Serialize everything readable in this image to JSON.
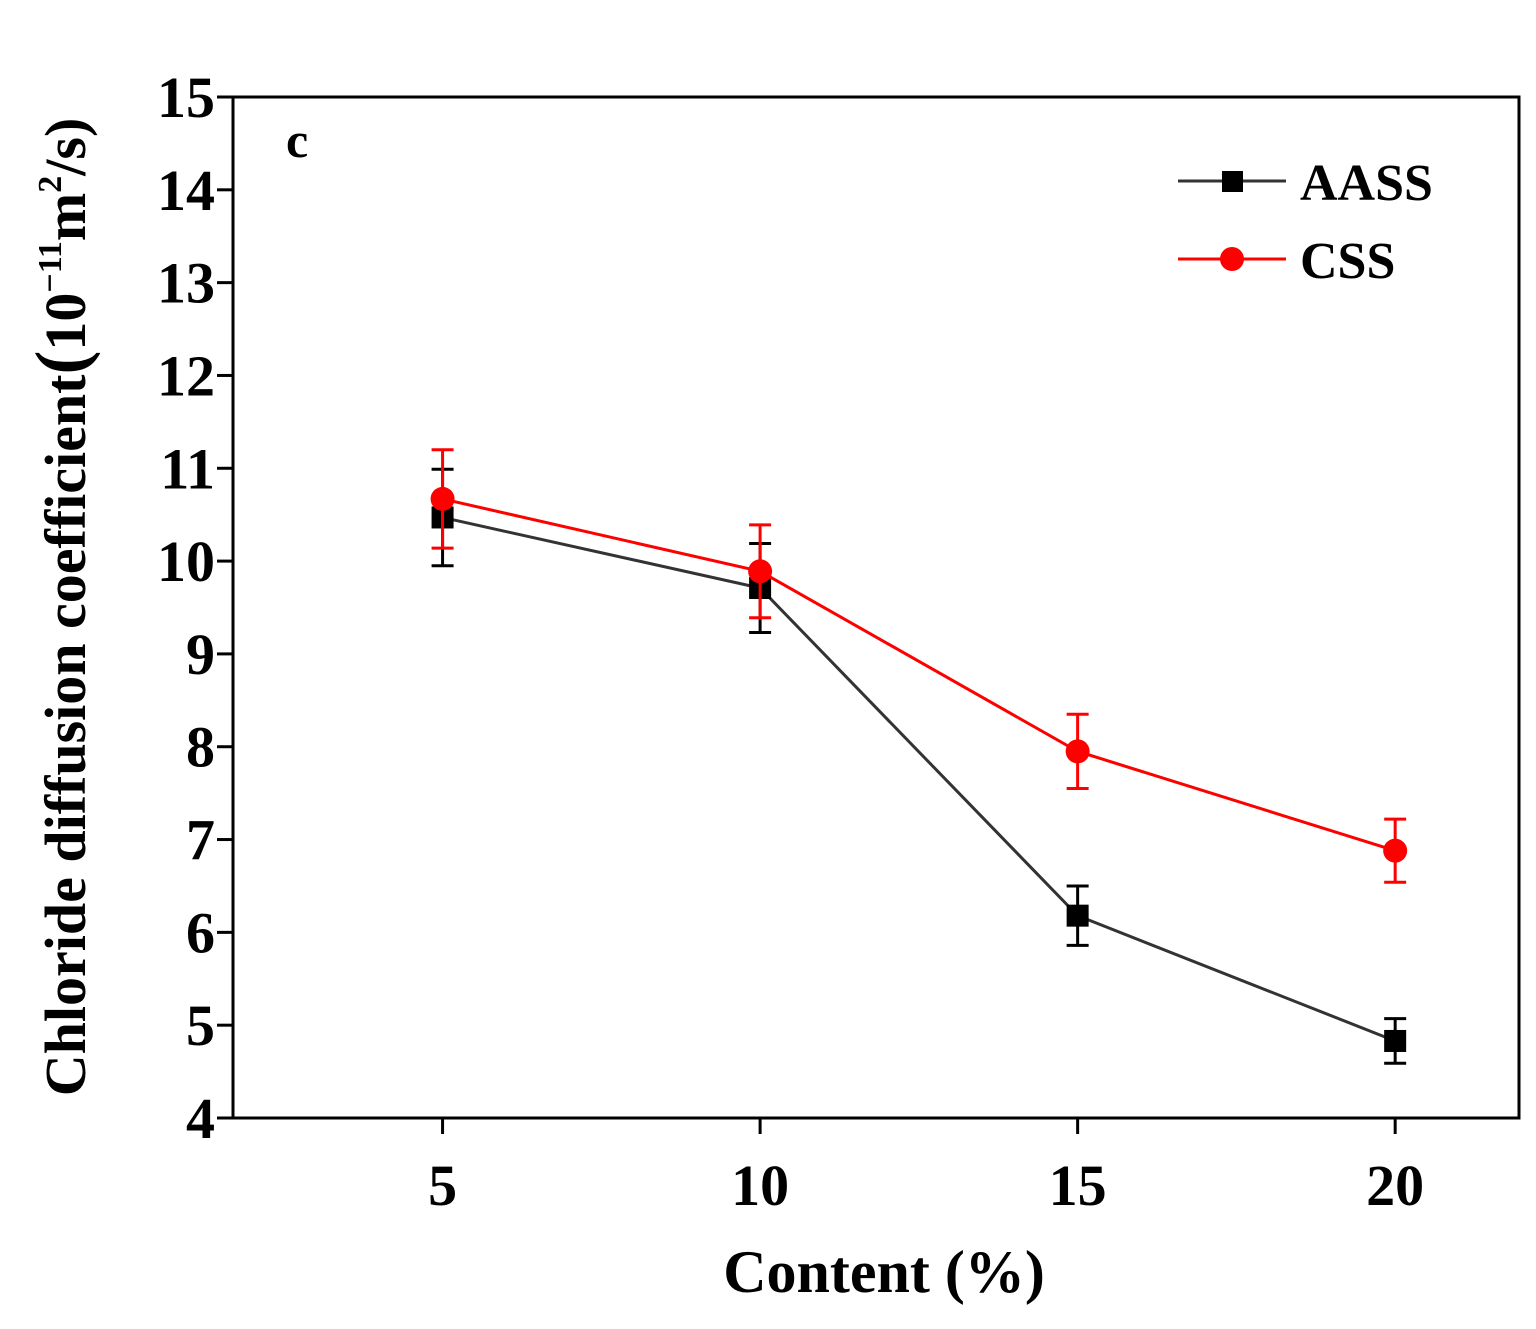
{
  "chart_data": {
    "type": "line",
    "panel_label": "c",
    "title": "",
    "xlabel": "Content (%)",
    "ylabel": {
      "main": "Chloride diffusion coefficient",
      "open_paren": "(",
      "unit_base": "10",
      "unit_exp": "−11",
      "unit_m": "m",
      "unit_m_exp": "2",
      "unit_rest": "/s)"
    },
    "x": [
      5,
      10,
      15,
      20
    ],
    "x_ticks": [
      "5",
      "10",
      "15",
      "20"
    ],
    "xlim": [
      1.7,
      21.95
    ],
    "ylim": [
      4,
      15
    ],
    "y_ticks": [
      "4",
      "5",
      "6",
      "7",
      "8",
      "9",
      "10",
      "11",
      "12",
      "13",
      "14",
      "15"
    ],
    "legend_position": "top-right",
    "grid": false,
    "series": [
      {
        "name": "AASS",
        "color": "#000000",
        "line_color": "#333333",
        "marker": "square",
        "values": [
          10.47,
          9.71,
          6.18,
          4.83
        ],
        "errors": [
          0.52,
          0.48,
          0.32,
          0.24
        ]
      },
      {
        "name": "CSS",
        "color": "#ff0000",
        "line_color": "#ff0000",
        "marker": "circle",
        "values": [
          10.67,
          9.89,
          7.95,
          6.88
        ],
        "errors": [
          0.53,
          0.5,
          0.4,
          0.34
        ]
      }
    ]
  }
}
